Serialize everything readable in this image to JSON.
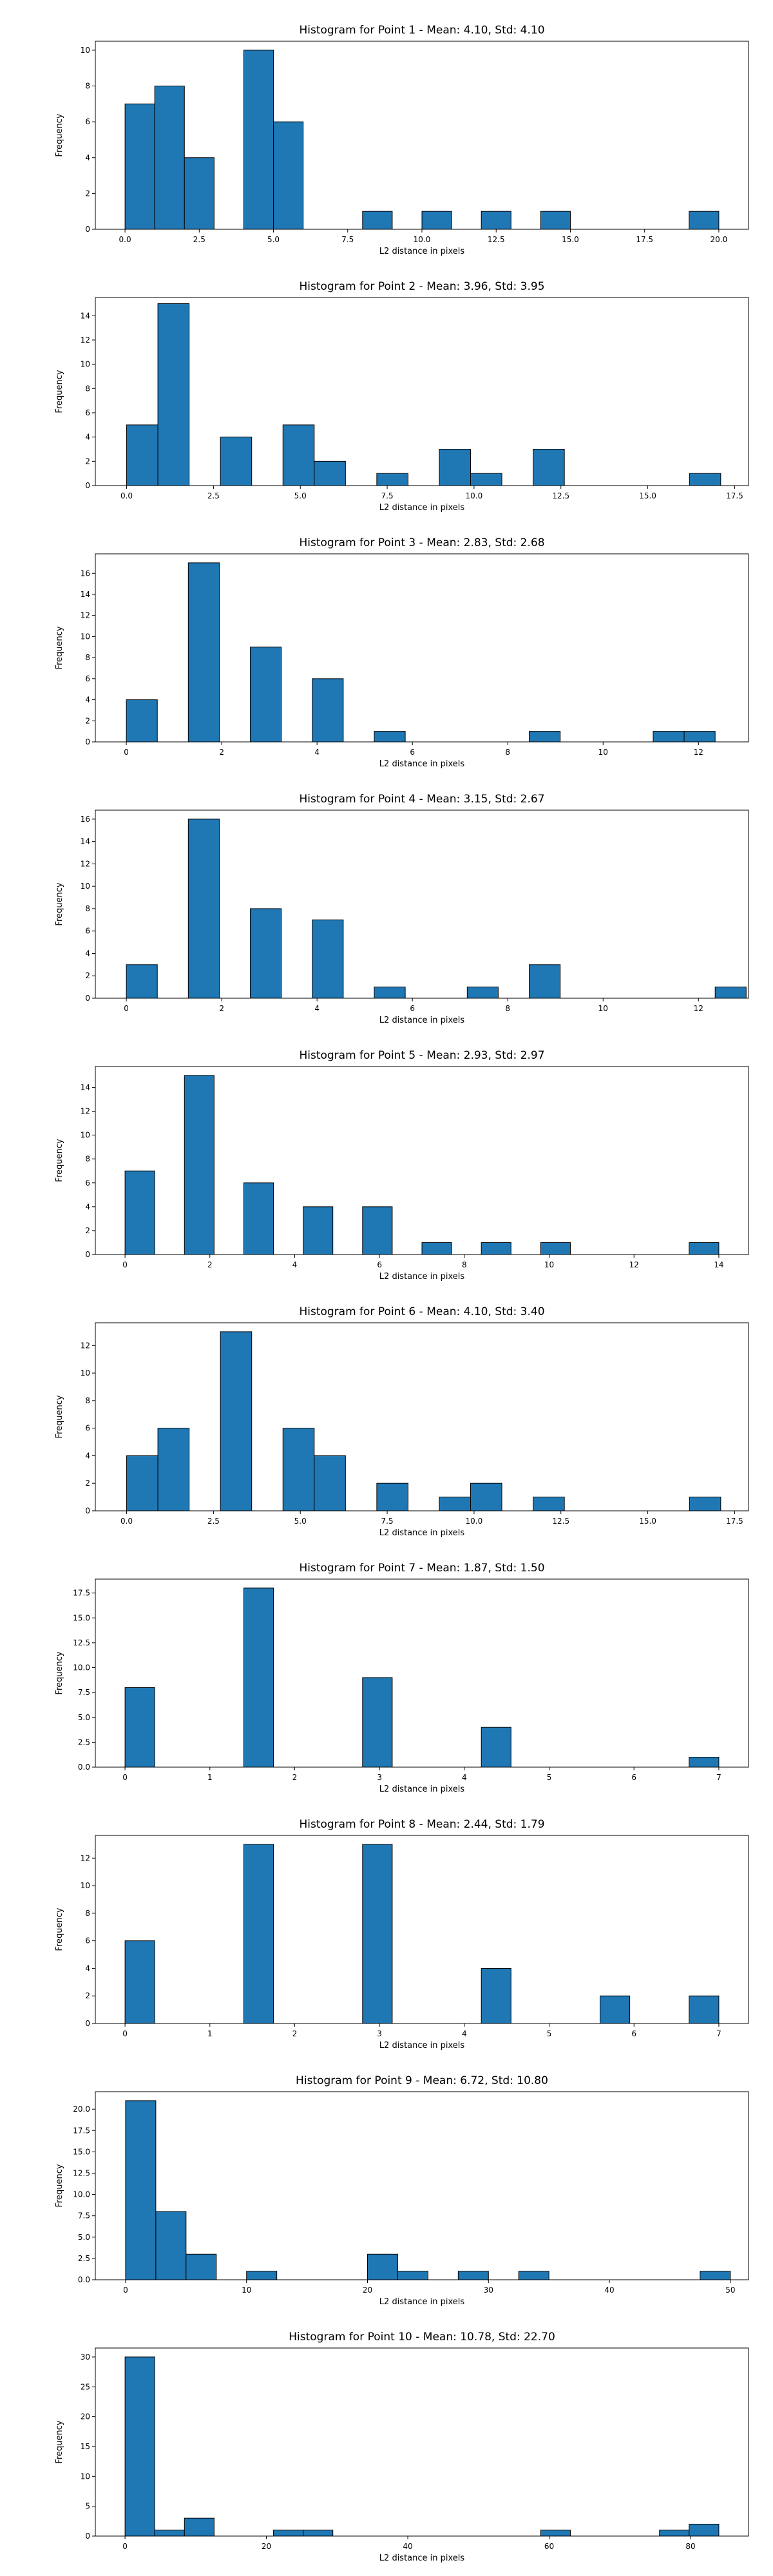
{
  "chart_data": [
    {
      "type": "bar",
      "title": "Histogram for Point 1 - Mean: 4.10, Std: 4.10",
      "xlabel": "L2 distance in pixels",
      "ylabel": "Frequency",
      "xlim": [
        -1,
        21
      ],
      "ylim": [
        0,
        10.5
      ],
      "xticks": [
        0.0,
        2.5,
        5.0,
        7.5,
        10.0,
        12.5,
        15.0,
        17.5,
        20.0
      ],
      "xtick_labels": [
        "0.0",
        "2.5",
        "5.0",
        "7.5",
        "10.0",
        "12.5",
        "15.0",
        "17.5",
        "20.0"
      ],
      "yticks": [
        0,
        2,
        4,
        6,
        8,
        10
      ],
      "ytick_labels": [
        "0",
        "2",
        "4",
        "6",
        "8",
        "10"
      ],
      "bins": [
        {
          "x0": 0.0,
          "x1": 1.0,
          "count": 7
        },
        {
          "x0": 1.0,
          "x1": 2.0,
          "count": 8
        },
        {
          "x0": 2.0,
          "x1": 3.0,
          "count": 4
        },
        {
          "x0": 4.0,
          "x1": 5.0,
          "count": 10
        },
        {
          "x0": 5.0,
          "x1": 6.0,
          "count": 6
        },
        {
          "x0": 8.0,
          "x1": 9.0,
          "count": 1
        },
        {
          "x0": 10.0,
          "x1": 11.0,
          "count": 1
        },
        {
          "x0": 12.0,
          "x1": 13.0,
          "count": 1
        },
        {
          "x0": 14.0,
          "x1": 15.0,
          "count": 1
        },
        {
          "x0": 19.0,
          "x1": 20.0,
          "count": 1
        }
      ]
    },
    {
      "type": "bar",
      "title": "Histogram for Point 2 - Mean: 3.96, Std: 3.95",
      "xlabel": "L2 distance in pixels",
      "ylabel": "Frequency",
      "xlim": [
        -0.9,
        17.9
      ],
      "ylim": [
        0,
        15.5
      ],
      "xticks": [
        0.0,
        2.5,
        5.0,
        7.5,
        10.0,
        12.5,
        15.0,
        17.5
      ],
      "xtick_labels": [
        "0.0",
        "2.5",
        "5.0",
        "7.5",
        "10.0",
        "12.5",
        "15.0",
        "17.5"
      ],
      "yticks": [
        0,
        2,
        4,
        6,
        8,
        10,
        12,
        14
      ],
      "ytick_labels": [
        "0",
        "2",
        "4",
        "6",
        "8",
        "10",
        "12",
        "14"
      ],
      "bins": [
        {
          "x0": 0.0,
          "x1": 0.9,
          "count": 5
        },
        {
          "x0": 0.9,
          "x1": 1.8,
          "count": 15
        },
        {
          "x0": 2.7,
          "x1": 3.6,
          "count": 4
        },
        {
          "x0": 4.5,
          "x1": 5.4,
          "count": 5
        },
        {
          "x0": 5.4,
          "x1": 6.3,
          "count": 2
        },
        {
          "x0": 7.2,
          "x1": 8.1,
          "count": 1
        },
        {
          "x0": 9.0,
          "x1": 9.9,
          "count": 3
        },
        {
          "x0": 9.9,
          "x1": 10.8,
          "count": 1
        },
        {
          "x0": 11.7,
          "x1": 12.6,
          "count": 3
        },
        {
          "x0": 16.2,
          "x1": 17.1,
          "count": 1
        }
      ]
    },
    {
      "type": "bar",
      "title": "Histogram for Point 3 - Mean: 2.83, Std: 2.68",
      "xlabel": "L2 distance in pixels",
      "ylabel": "Frequency",
      "xlim": [
        -0.65,
        13.05
      ],
      "ylim": [
        0,
        17.85
      ],
      "xticks": [
        0,
        2,
        4,
        6,
        8,
        10,
        12
      ],
      "xtick_labels": [
        "0",
        "2",
        "4",
        "6",
        "8",
        "10",
        "12"
      ],
      "yticks": [
        0,
        2,
        4,
        6,
        8,
        10,
        12,
        14,
        16
      ],
      "ytick_labels": [
        "0",
        "2",
        "4",
        "6",
        "8",
        "10",
        "12",
        "14",
        "16"
      ],
      "bins": [
        {
          "x0": 0.0,
          "x1": 0.65,
          "count": 4
        },
        {
          "x0": 1.3,
          "x1": 1.95,
          "count": 17
        },
        {
          "x0": 2.6,
          "x1": 3.25,
          "count": 9
        },
        {
          "x0": 3.9,
          "x1": 4.55,
          "count": 6
        },
        {
          "x0": 5.2,
          "x1": 5.85,
          "count": 1
        },
        {
          "x0": 8.45,
          "x1": 9.1,
          "count": 1
        },
        {
          "x0": 11.05,
          "x1": 11.7,
          "count": 1
        },
        {
          "x0": 11.7,
          "x1": 12.35,
          "count": 1
        }
      ]
    },
    {
      "type": "bar",
      "title": "Histogram for Point 4 - Mean: 3.15, Std: 2.67",
      "xlabel": "L2 distance in pixels",
      "ylabel": "Frequency",
      "xlim": [
        -0.65,
        13.05
      ],
      "ylim": [
        0,
        16.8
      ],
      "xticks": [
        0,
        2,
        4,
        6,
        8,
        10,
        12
      ],
      "xtick_labels": [
        "0",
        "2",
        "4",
        "6",
        "8",
        "10",
        "12"
      ],
      "yticks": [
        0,
        2,
        4,
        6,
        8,
        10,
        12,
        14,
        16
      ],
      "ytick_labels": [
        "0",
        "2",
        "4",
        "6",
        "8",
        "10",
        "12",
        "14",
        "16"
      ],
      "bins": [
        {
          "x0": 0.0,
          "x1": 0.65,
          "count": 3
        },
        {
          "x0": 1.3,
          "x1": 1.95,
          "count": 16
        },
        {
          "x0": 2.6,
          "x1": 3.25,
          "count": 8
        },
        {
          "x0": 3.9,
          "x1": 4.55,
          "count": 7
        },
        {
          "x0": 5.2,
          "x1": 5.85,
          "count": 1
        },
        {
          "x0": 7.15,
          "x1": 7.8,
          "count": 1
        },
        {
          "x0": 8.45,
          "x1": 9.1,
          "count": 3
        },
        {
          "x0": 12.35,
          "x1": 13.0,
          "count": 1
        }
      ]
    },
    {
      "type": "bar",
      "title": "Histogram for Point 5 - Mean: 2.93, Std: 2.97",
      "xlabel": "L2 distance in pixels",
      "ylabel": "Frequency",
      "xlim": [
        -0.7,
        14.7
      ],
      "ylim": [
        0,
        15.75
      ],
      "xticks": [
        0,
        2,
        4,
        6,
        8,
        10,
        12,
        14
      ],
      "xtick_labels": [
        "0",
        "2",
        "4",
        "6",
        "8",
        "10",
        "12",
        "14"
      ],
      "yticks": [
        0,
        2,
        4,
        6,
        8,
        10,
        12,
        14
      ],
      "ytick_labels": [
        "0",
        "2",
        "4",
        "6",
        "8",
        "10",
        "12",
        "14"
      ],
      "bins": [
        {
          "x0": 0.0,
          "x1": 0.7,
          "count": 7
        },
        {
          "x0": 1.4,
          "x1": 2.1,
          "count": 15
        },
        {
          "x0": 2.8,
          "x1": 3.5,
          "count": 6
        },
        {
          "x0": 4.2,
          "x1": 4.9,
          "count": 4
        },
        {
          "x0": 5.6,
          "x1": 6.3,
          "count": 4
        },
        {
          "x0": 7.0,
          "x1": 7.7,
          "count": 1
        },
        {
          "x0": 8.4,
          "x1": 9.1,
          "count": 1
        },
        {
          "x0": 9.8,
          "x1": 10.5,
          "count": 1
        },
        {
          "x0": 13.3,
          "x1": 14.0,
          "count": 1
        }
      ]
    },
    {
      "type": "bar",
      "title": "Histogram for Point 6 - Mean: 4.10, Std: 3.40",
      "xlabel": "L2 distance in pixels",
      "ylabel": "Frequency",
      "xlim": [
        -0.9,
        17.9
      ],
      "ylim": [
        0,
        13.65
      ],
      "xticks": [
        0.0,
        2.5,
        5.0,
        7.5,
        10.0,
        12.5,
        15.0,
        17.5
      ],
      "xtick_labels": [
        "0.0",
        "2.5",
        "5.0",
        "7.5",
        "10.0",
        "12.5",
        "15.0",
        "17.5"
      ],
      "yticks": [
        0,
        2,
        4,
        6,
        8,
        10,
        12
      ],
      "ytick_labels": [
        "0",
        "2",
        "4",
        "6",
        "8",
        "10",
        "12"
      ],
      "bins": [
        {
          "x0": 0.0,
          "x1": 0.9,
          "count": 4
        },
        {
          "x0": 0.9,
          "x1": 1.8,
          "count": 6
        },
        {
          "x0": 2.7,
          "x1": 3.6,
          "count": 13
        },
        {
          "x0": 4.5,
          "x1": 5.4,
          "count": 6
        },
        {
          "x0": 5.4,
          "x1": 6.3,
          "count": 4
        },
        {
          "x0": 7.2,
          "x1": 8.1,
          "count": 2
        },
        {
          "x0": 9.0,
          "x1": 9.9,
          "count": 1
        },
        {
          "x0": 9.9,
          "x1": 10.8,
          "count": 2
        },
        {
          "x0": 11.7,
          "x1": 12.6,
          "count": 1
        },
        {
          "x0": 16.2,
          "x1": 17.1,
          "count": 1
        }
      ]
    },
    {
      "type": "bar",
      "title": "Histogram for Point 7 - Mean: 1.87, Std: 1.50",
      "xlabel": "L2 distance in pixels",
      "ylabel": "Frequency",
      "xlim": [
        -0.35,
        7.35
      ],
      "ylim": [
        0,
        18.9
      ],
      "xticks": [
        0,
        1,
        2,
        3,
        4,
        5,
        6,
        7
      ],
      "xtick_labels": [
        "0",
        "1",
        "2",
        "3",
        "4",
        "5",
        "6",
        "7"
      ],
      "yticks": [
        0,
        2.5,
        5,
        7.5,
        10,
        12.5,
        15,
        17.5
      ],
      "ytick_labels": [
        "0.0",
        "2.5",
        "5.0",
        "7.5",
        "10.0",
        "12.5",
        "15.0",
        "17.5"
      ],
      "bins": [
        {
          "x0": 0.0,
          "x1": 0.35,
          "count": 8
        },
        {
          "x0": 1.4,
          "x1": 1.75,
          "count": 18
        },
        {
          "x0": 2.8,
          "x1": 3.15,
          "count": 9
        },
        {
          "x0": 4.2,
          "x1": 4.55,
          "count": 4
        },
        {
          "x0": 6.65,
          "x1": 7.0,
          "count": 1
        }
      ]
    },
    {
      "type": "bar",
      "title": "Histogram for Point 8 - Mean: 2.44, Std: 1.79",
      "xlabel": "L2 distance in pixels",
      "ylabel": "Frequency",
      "xlim": [
        -0.35,
        7.35
      ],
      "ylim": [
        0,
        13.65
      ],
      "xticks": [
        0,
        1,
        2,
        3,
        4,
        5,
        6,
        7
      ],
      "xtick_labels": [
        "0",
        "1",
        "2",
        "3",
        "4",
        "5",
        "6",
        "7"
      ],
      "yticks": [
        0,
        2,
        4,
        6,
        8,
        10,
        12
      ],
      "ytick_labels": [
        "0",
        "2",
        "4",
        "6",
        "8",
        "10",
        "12"
      ],
      "bins": [
        {
          "x0": 0.0,
          "x1": 0.35,
          "count": 6
        },
        {
          "x0": 1.4,
          "x1": 1.75,
          "count": 13
        },
        {
          "x0": 2.8,
          "x1": 3.15,
          "count": 13
        },
        {
          "x0": 4.2,
          "x1": 4.55,
          "count": 4
        },
        {
          "x0": 5.6,
          "x1": 5.95,
          "count": 2
        },
        {
          "x0": 6.65,
          "x1": 7.0,
          "count": 2
        }
      ]
    },
    {
      "type": "bar",
      "title": "Histogram for Point 9 - Mean: 6.72, Std: 10.80",
      "xlabel": "L2 distance in pixels",
      "ylabel": "Frequency",
      "xlim": [
        -2.5,
        51.5
      ],
      "ylim": [
        0,
        22.05
      ],
      "xticks": [
        0,
        10,
        20,
        30,
        40,
        50
      ],
      "xtick_labels": [
        "0",
        "10",
        "20",
        "30",
        "40",
        "50"
      ],
      "yticks": [
        0,
        2.5,
        5,
        7.5,
        10,
        12.5,
        15,
        17.5,
        20
      ],
      "ytick_labels": [
        "0.0",
        "2.5",
        "5.0",
        "7.5",
        "10.0",
        "12.5",
        "15.0",
        "17.5",
        "20.0"
      ],
      "bins": [
        {
          "x0": 0.0,
          "x1": 2.5,
          "count": 21
        },
        {
          "x0": 2.5,
          "x1": 5.0,
          "count": 8
        },
        {
          "x0": 5.0,
          "x1": 7.5,
          "count": 3
        },
        {
          "x0": 10.0,
          "x1": 12.5,
          "count": 1
        },
        {
          "x0": 20.0,
          "x1": 22.5,
          "count": 3
        },
        {
          "x0": 22.5,
          "x1": 25.0,
          "count": 1
        },
        {
          "x0": 27.5,
          "x1": 30.0,
          "count": 1
        },
        {
          "x0": 32.5,
          "x1": 35.0,
          "count": 1
        },
        {
          "x0": 47.5,
          "x1": 50.0,
          "count": 1
        }
      ]
    },
    {
      "type": "bar",
      "title": "Histogram for Point 10 - Mean: 10.78, Std: 22.70",
      "xlabel": "L2 distance in pixels",
      "ylabel": "Frequency",
      "xlim": [
        -4.2,
        88.2
      ],
      "ylim": [
        0,
        31.5
      ],
      "xticks": [
        0,
        20,
        40,
        60,
        80
      ],
      "xtick_labels": [
        "0",
        "20",
        "40",
        "60",
        "80"
      ],
      "yticks": [
        0,
        5,
        10,
        15,
        20,
        25,
        30
      ],
      "ytick_labels": [
        "0",
        "5",
        "10",
        "15",
        "20",
        "25",
        "30"
      ],
      "bins": [
        {
          "x0": 0.0,
          "x1": 4.2,
          "count": 30
        },
        {
          "x0": 4.2,
          "x1": 8.4,
          "count": 1
        },
        {
          "x0": 8.4,
          "x1": 12.6,
          "count": 3
        },
        {
          "x0": 21.0,
          "x1": 25.2,
          "count": 1
        },
        {
          "x0": 25.2,
          "x1": 29.4,
          "count": 1
        },
        {
          "x0": 58.8,
          "x1": 63.0,
          "count": 1
        },
        {
          "x0": 75.6,
          "x1": 79.8,
          "count": 1
        },
        {
          "x0": 79.8,
          "x1": 84.0,
          "count": 2
        }
      ]
    }
  ]
}
